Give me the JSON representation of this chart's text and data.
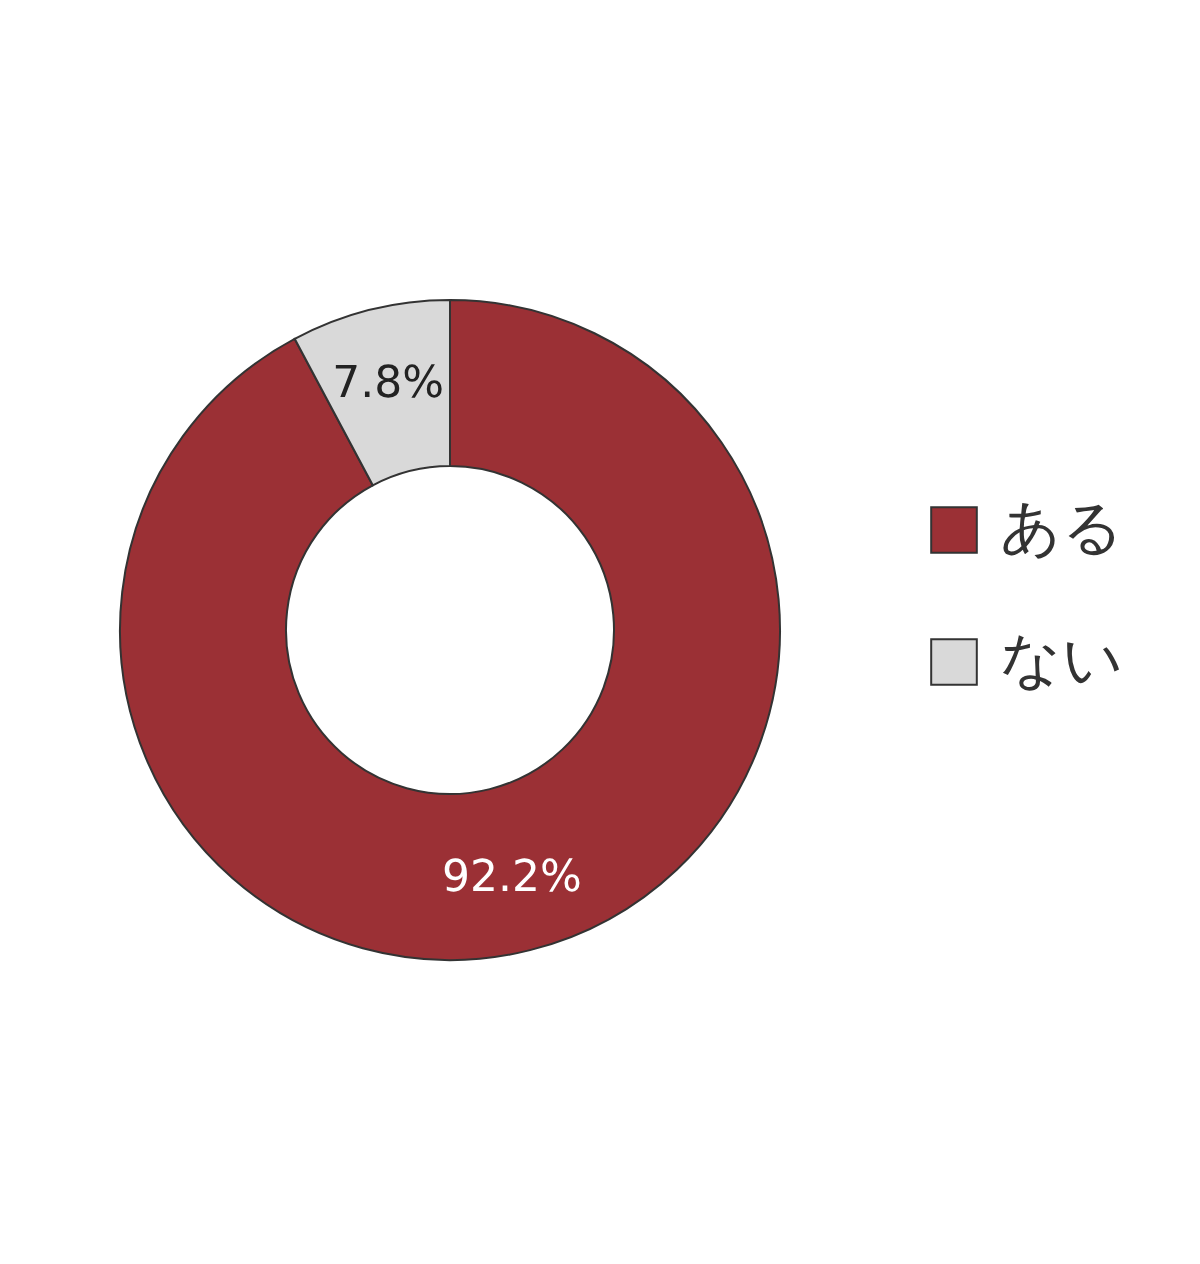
{
  "chart_data": {
    "type": "donut",
    "categories": [
      "ある",
      "ない"
    ],
    "values": [
      92.2,
      7.8
    ],
    "colors": [
      "#9b3035",
      "#d9d9d9"
    ],
    "value_labels": [
      "92.2%",
      "7.8%"
    ],
    "legend": "right"
  }
}
